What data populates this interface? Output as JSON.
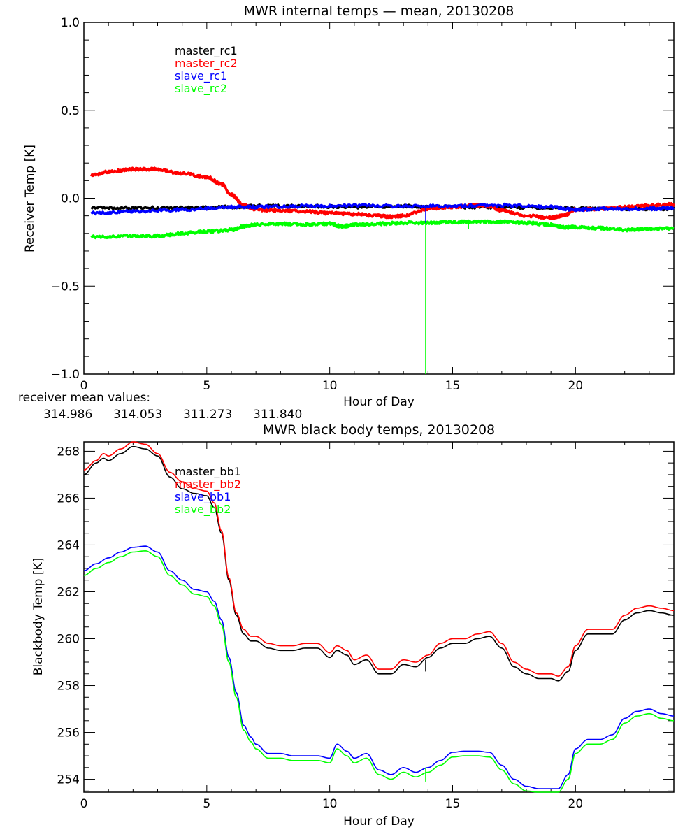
{
  "colors": {
    "black": "#000000",
    "red": "#ff0000",
    "blue": "#0000ff",
    "green": "#00ff00"
  },
  "chart_data": [
    {
      "type": "line",
      "title": "MWR internal temps — mean, 20130208",
      "xlabel": "Hour of Day",
      "ylabel": "Receiver Temp [K]",
      "xlim": [
        0,
        24
      ],
      "ylim": [
        -1.0,
        1.0
      ],
      "xticks": [
        "0",
        "5",
        "10",
        "15",
        "20"
      ],
      "xtick_values": [
        0,
        5,
        10,
        15,
        20
      ],
      "yticks": [
        "-1.0",
        "-0.5",
        "0.0",
        "0.5",
        "1.0"
      ],
      "ytick_values": [
        -1.0,
        -0.5,
        0.0,
        0.5,
        1.0
      ],
      "grid": false,
      "legend_position": "top-left",
      "series": [
        {
          "name": "master_rc1",
          "color": "#000000",
          "x": [
            0.3,
            2,
            4,
            6,
            7,
            9,
            11,
            13,
            14,
            15,
            17,
            19,
            21,
            23,
            24
          ],
          "y": [
            -0.055,
            -0.055,
            -0.055,
            -0.05,
            -0.045,
            -0.045,
            -0.05,
            -0.045,
            -0.05,
            -0.05,
            -0.05,
            -0.055,
            -0.06,
            -0.06,
            -0.06
          ]
        },
        {
          "name": "master_rc2",
          "color": "#ff0000",
          "x": [
            0.3,
            1,
            2,
            3,
            4,
            5,
            5.6,
            6,
            6.5,
            7,
            8,
            9,
            10,
            11,
            12,
            12.5,
            13,
            14,
            15,
            16,
            16.5,
            17,
            18,
            19,
            19.5,
            20,
            21,
            22,
            23,
            24
          ],
          "y": [
            0.13,
            0.15,
            0.165,
            0.165,
            0.14,
            0.12,
            0.08,
            0.02,
            -0.04,
            -0.065,
            -0.07,
            -0.075,
            -0.085,
            -0.09,
            -0.1,
            -0.105,
            -0.1,
            -0.06,
            -0.05,
            -0.04,
            -0.045,
            -0.07,
            -0.1,
            -0.11,
            -0.1,
            -0.065,
            -0.06,
            -0.05,
            -0.04,
            -0.035
          ]
        },
        {
          "name": "slave_rc1",
          "color": "#0000ff",
          "x": [
            0.3,
            2,
            4,
            6,
            7,
            9,
            11,
            13,
            15,
            17,
            19,
            20,
            21,
            23,
            24
          ],
          "y": [
            -0.085,
            -0.075,
            -0.065,
            -0.05,
            -0.05,
            -0.045,
            -0.04,
            -0.045,
            -0.045,
            -0.04,
            -0.05,
            -0.065,
            -0.06,
            -0.06,
            -0.055
          ]
        },
        {
          "name": "slave_rc2",
          "color": "#00ff00",
          "x": [
            0.3,
            2,
            3,
            4,
            5,
            6,
            6.5,
            7,
            8,
            9,
            10,
            10.5,
            11,
            12,
            13,
            14,
            15,
            16,
            17,
            18,
            19,
            19.5,
            20,
            21,
            22,
            23,
            24
          ],
          "y": [
            -0.22,
            -0.215,
            -0.215,
            -0.2,
            -0.19,
            -0.18,
            -0.16,
            -0.15,
            -0.145,
            -0.15,
            -0.145,
            -0.16,
            -0.15,
            -0.145,
            -0.14,
            -0.14,
            -0.135,
            -0.135,
            -0.135,
            -0.14,
            -0.15,
            -0.165,
            -0.165,
            -0.17,
            -0.18,
            -0.175,
            -0.17
          ]
        }
      ],
      "spikes": [
        {
          "series": "slave_rc2",
          "x": 13.9,
          "y_from": -0.14,
          "y_to": -1.0
        },
        {
          "series": "slave_rc1",
          "x": 13.9,
          "y_from": -0.045,
          "y_to": -0.14
        },
        {
          "series": "slave_rc2",
          "x": 15.65,
          "y_from": -0.135,
          "y_to": -0.175
        }
      ],
      "annotations": {
        "label": "receiver mean values:",
        "values": [
          {
            "text": "314.986",
            "color": "#000000"
          },
          {
            "text": "314.053",
            "color": "#ff0000"
          },
          {
            "text": "311.273",
            "color": "#0000ff"
          },
          {
            "text": "311.840",
            "color": "#00ff00"
          }
        ]
      }
    },
    {
      "type": "line",
      "title": "MWR black body temps, 20130208",
      "xlabel": "Hour of Day",
      "ylabel": "Blackbody Temp [K]",
      "xlim": [
        0,
        24
      ],
      "ylim": [
        253.45,
        268.4
      ],
      "xticks": [
        "0",
        "5",
        "10",
        "15",
        "20"
      ],
      "xtick_values": [
        0,
        5,
        10,
        15,
        20
      ],
      "yticks": [
        "254",
        "256",
        "258",
        "260",
        "262",
        "264",
        "266",
        "268"
      ],
      "ytick_values": [
        254,
        256,
        258,
        260,
        262,
        264,
        266,
        268
      ],
      "grid": false,
      "legend_position": "top-left",
      "series": [
        {
          "name": "master_bb1",
          "color": "#000000",
          "x": [
            0,
            0.5,
            0.8,
            1,
            1.5,
            2,
            2.5,
            3,
            3.5,
            4,
            4.5,
            5,
            5.3,
            5.6,
            5.9,
            6.2,
            6.5,
            6.8,
            7,
            7.5,
            8,
            8.5,
            9,
            9.5,
            10,
            10.3,
            10.7,
            11,
            11.5,
            12,
            12.5,
            13,
            13.5,
            14,
            14.5,
            15,
            15.5,
            16,
            16.5,
            17,
            17.5,
            18,
            18.5,
            19,
            19.3,
            19.7,
            20,
            20.5,
            21,
            21.5,
            22,
            22.5,
            23,
            23.5,
            24
          ],
          "y": [
            267.0,
            267.5,
            267.7,
            267.6,
            267.9,
            268.2,
            268.1,
            267.8,
            266.9,
            266.4,
            266.2,
            266.1,
            265.6,
            264.5,
            262.5,
            261.0,
            260.2,
            259.9,
            259.9,
            259.6,
            259.5,
            259.5,
            259.6,
            259.6,
            259.2,
            259.5,
            259.3,
            258.9,
            259.1,
            258.5,
            258.5,
            258.9,
            258.8,
            259.2,
            259.6,
            259.8,
            259.8,
            260.0,
            260.1,
            259.6,
            258.8,
            258.5,
            258.3,
            258.3,
            258.2,
            258.6,
            259.5,
            260.2,
            260.2,
            260.2,
            260.8,
            261.1,
            261.2,
            261.1,
            261.0
          ]
        },
        {
          "name": "master_bb2",
          "color": "#ff0000",
          "x": [
            0,
            0.5,
            0.8,
            1,
            1.5,
            2,
            2.5,
            3,
            3.5,
            4,
            4.5,
            5,
            5.3,
            5.6,
            5.9,
            6.2,
            6.5,
            6.8,
            7,
            7.5,
            8,
            8.5,
            9,
            9.5,
            10,
            10.3,
            10.7,
            11,
            11.5,
            12,
            12.5,
            13,
            13.5,
            14,
            14.5,
            15,
            15.5,
            16,
            16.5,
            17,
            17.5,
            18,
            18.5,
            19,
            19.3,
            19.7,
            20,
            20.5,
            21,
            21.5,
            22,
            22.5,
            23,
            23.5,
            24
          ],
          "y": [
            267.2,
            267.6,
            267.9,
            267.8,
            268.1,
            268.4,
            268.3,
            267.9,
            267.1,
            266.7,
            266.4,
            266.3,
            265.8,
            264.6,
            262.6,
            261.1,
            260.4,
            260.1,
            260.1,
            259.8,
            259.7,
            259.7,
            259.8,
            259.8,
            259.4,
            259.7,
            259.5,
            259.1,
            259.3,
            258.7,
            258.7,
            259.1,
            259.0,
            259.3,
            259.8,
            260.0,
            260.0,
            260.2,
            260.3,
            259.8,
            259.0,
            258.7,
            258.5,
            258.5,
            258.4,
            258.8,
            259.7,
            260.4,
            260.4,
            260.4,
            261.0,
            261.3,
            261.4,
            261.3,
            261.2
          ]
        },
        {
          "name": "slave_bb1",
          "color": "#0000ff",
          "x": [
            0,
            0.5,
            1,
            1.5,
            2,
            2.5,
            3,
            3.5,
            4,
            4.5,
            5,
            5.3,
            5.6,
            5.9,
            6.2,
            6.5,
            6.8,
            7,
            7.5,
            8,
            8.5,
            9,
            9.5,
            10,
            10.3,
            10.7,
            11,
            11.5,
            12,
            12.5,
            13,
            13.5,
            14,
            14.5,
            15,
            15.5,
            16,
            16.5,
            17,
            17.5,
            18,
            18.5,
            19,
            19.3,
            19.7,
            20,
            20.5,
            21,
            21.5,
            22,
            22.5,
            23,
            23.5,
            24
          ],
          "y": [
            262.9,
            263.2,
            263.45,
            263.7,
            263.9,
            263.95,
            263.7,
            262.9,
            262.5,
            262.1,
            262.0,
            261.6,
            260.8,
            259.2,
            257.7,
            256.3,
            255.8,
            255.5,
            255.1,
            255.1,
            255.0,
            255.0,
            255.0,
            254.9,
            255.5,
            255.2,
            254.9,
            255.1,
            254.4,
            254.2,
            254.5,
            254.3,
            254.5,
            254.8,
            255.15,
            255.2,
            255.2,
            255.15,
            254.6,
            254.0,
            253.7,
            253.6,
            253.6,
            253.6,
            254.2,
            255.3,
            255.7,
            255.7,
            255.9,
            256.6,
            256.9,
            257.0,
            256.8,
            256.7
          ]
        },
        {
          "name": "slave_bb2",
          "color": "#00ff00",
          "x": [
            0,
            0.5,
            1,
            1.5,
            2,
            2.5,
            3,
            3.5,
            4,
            4.5,
            5,
            5.3,
            5.6,
            5.9,
            6.2,
            6.5,
            6.8,
            7,
            7.5,
            8,
            8.5,
            9,
            9.5,
            10,
            10.3,
            10.7,
            11,
            11.5,
            12,
            12.5,
            13,
            13.5,
            14,
            14.5,
            15,
            15.5,
            16,
            16.5,
            17,
            17.5,
            18,
            18.5,
            19,
            19.3,
            19.7,
            20,
            20.5,
            21,
            21.5,
            22,
            22.5,
            23,
            23.5,
            24
          ],
          "y": [
            262.7,
            263.0,
            263.25,
            263.5,
            263.7,
            263.75,
            263.5,
            262.7,
            262.3,
            261.9,
            261.8,
            261.4,
            260.6,
            259.0,
            257.5,
            256.1,
            255.6,
            255.3,
            254.9,
            254.9,
            254.8,
            254.8,
            254.8,
            254.7,
            255.3,
            255.0,
            254.7,
            254.9,
            254.2,
            254.0,
            254.3,
            254.1,
            254.3,
            254.6,
            254.95,
            255.0,
            255.0,
            254.95,
            254.4,
            253.8,
            253.5,
            253.45,
            253.45,
            253.45,
            254.0,
            255.1,
            255.5,
            255.5,
            255.7,
            256.4,
            256.7,
            256.8,
            256.6,
            256.5
          ]
        }
      ],
      "spikes": [
        {
          "series": "master_bb1",
          "x": 13.9,
          "y_from": 259.1,
          "y_to": 258.6
        },
        {
          "series": "slave_bb2",
          "x": 13.9,
          "y_from": 254.5,
          "y_to": 253.9
        }
      ]
    }
  ]
}
